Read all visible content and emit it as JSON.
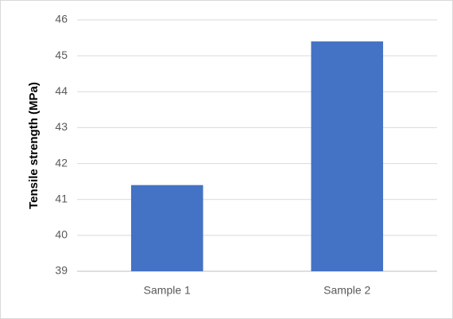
{
  "chart_data": {
    "type": "bar",
    "y_label": "Tensile strength (MPa)",
    "categories": [
      "Sample 1",
      "Sample 2"
    ],
    "values": [
      41.4,
      45.4
    ],
    "color": "#4472c4",
    "ylim": [
      39,
      46
    ],
    "yticks": [
      39,
      40,
      41,
      42,
      43,
      44,
      45,
      46
    ],
    "grid": true
  }
}
